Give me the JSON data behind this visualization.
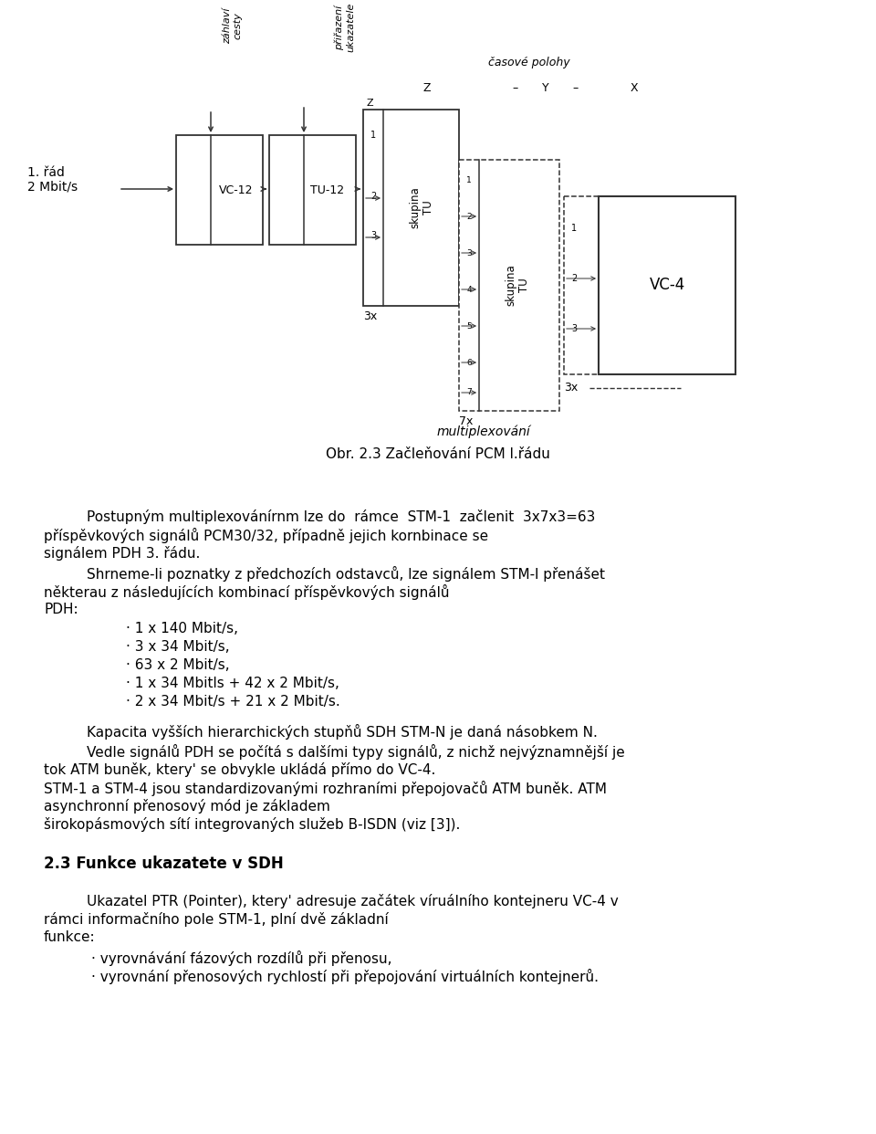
{
  "fig_width": 9.6,
  "fig_height": 12.42,
  "caption": "Obr. 2.3 Začleňování PCM l.řádu",
  "p1": "Postupným multiplexovánírn lze do rámce  STM-1  začlenit  3x7x3=63\npříspěvkových signálů PCM30/32, případně jejich kornbinace se\nsignálem PDH 3. řádu.",
  "p2": "Shrneme-li poznatky z předchozích odstavců, lze signálem STM-l přenášet\nněkterau z následujících kombinací příspěvkových signálů\nPDH:",
  "bullets1": [
    "· 1 x 140 Mbit/s,",
    "· 3 x 34 Mbit/s,",
    "· 63 x 2 Mbit/s,",
    "· 1 x 34 Mbitls + 42 x 2 Mbit/s,",
    "· 2 x 34 Mbit/s + 21 x 2 Mbit/s."
  ],
  "p3": "Kapacita vyšších hierarchických stupňů SDH STM-N je daná násobkem N.",
  "p4line1": "Vedle signálů PDH se počítá s dalšími typy signálů, z nichž nejvýznamnbjší je",
  "p4line2": "tok ATM buněk, ktery' se obvykle ukládá přímo do VC-4.",
  "p4line3": "STM-1 a STM-4 jsou standardizovanými rozhranními přepojovačů ATM buněk. ATM",
  "p4line4": "asynchronní přenosový mód je základem",
  "p4line5": "širokopásmových sítí integrovandých služeb B-ISDN (viz [3]).",
  "heading": "2.3 Funkce ukazatete v SDH",
  "p5": "Ukazatel PTR (Pointer), ktery' adresuje začátek vírtuálního kontejneru VC-4 v\nrámci informačního pole STM-1, plní dvě základní\nfunkce:",
  "bullets2": [
    "· vyrovnávání fázových rozdílů při přenosu,",
    "· vyrovnání přenosových rychlostí při přepojování virtuálních kontejnerů."
  ]
}
